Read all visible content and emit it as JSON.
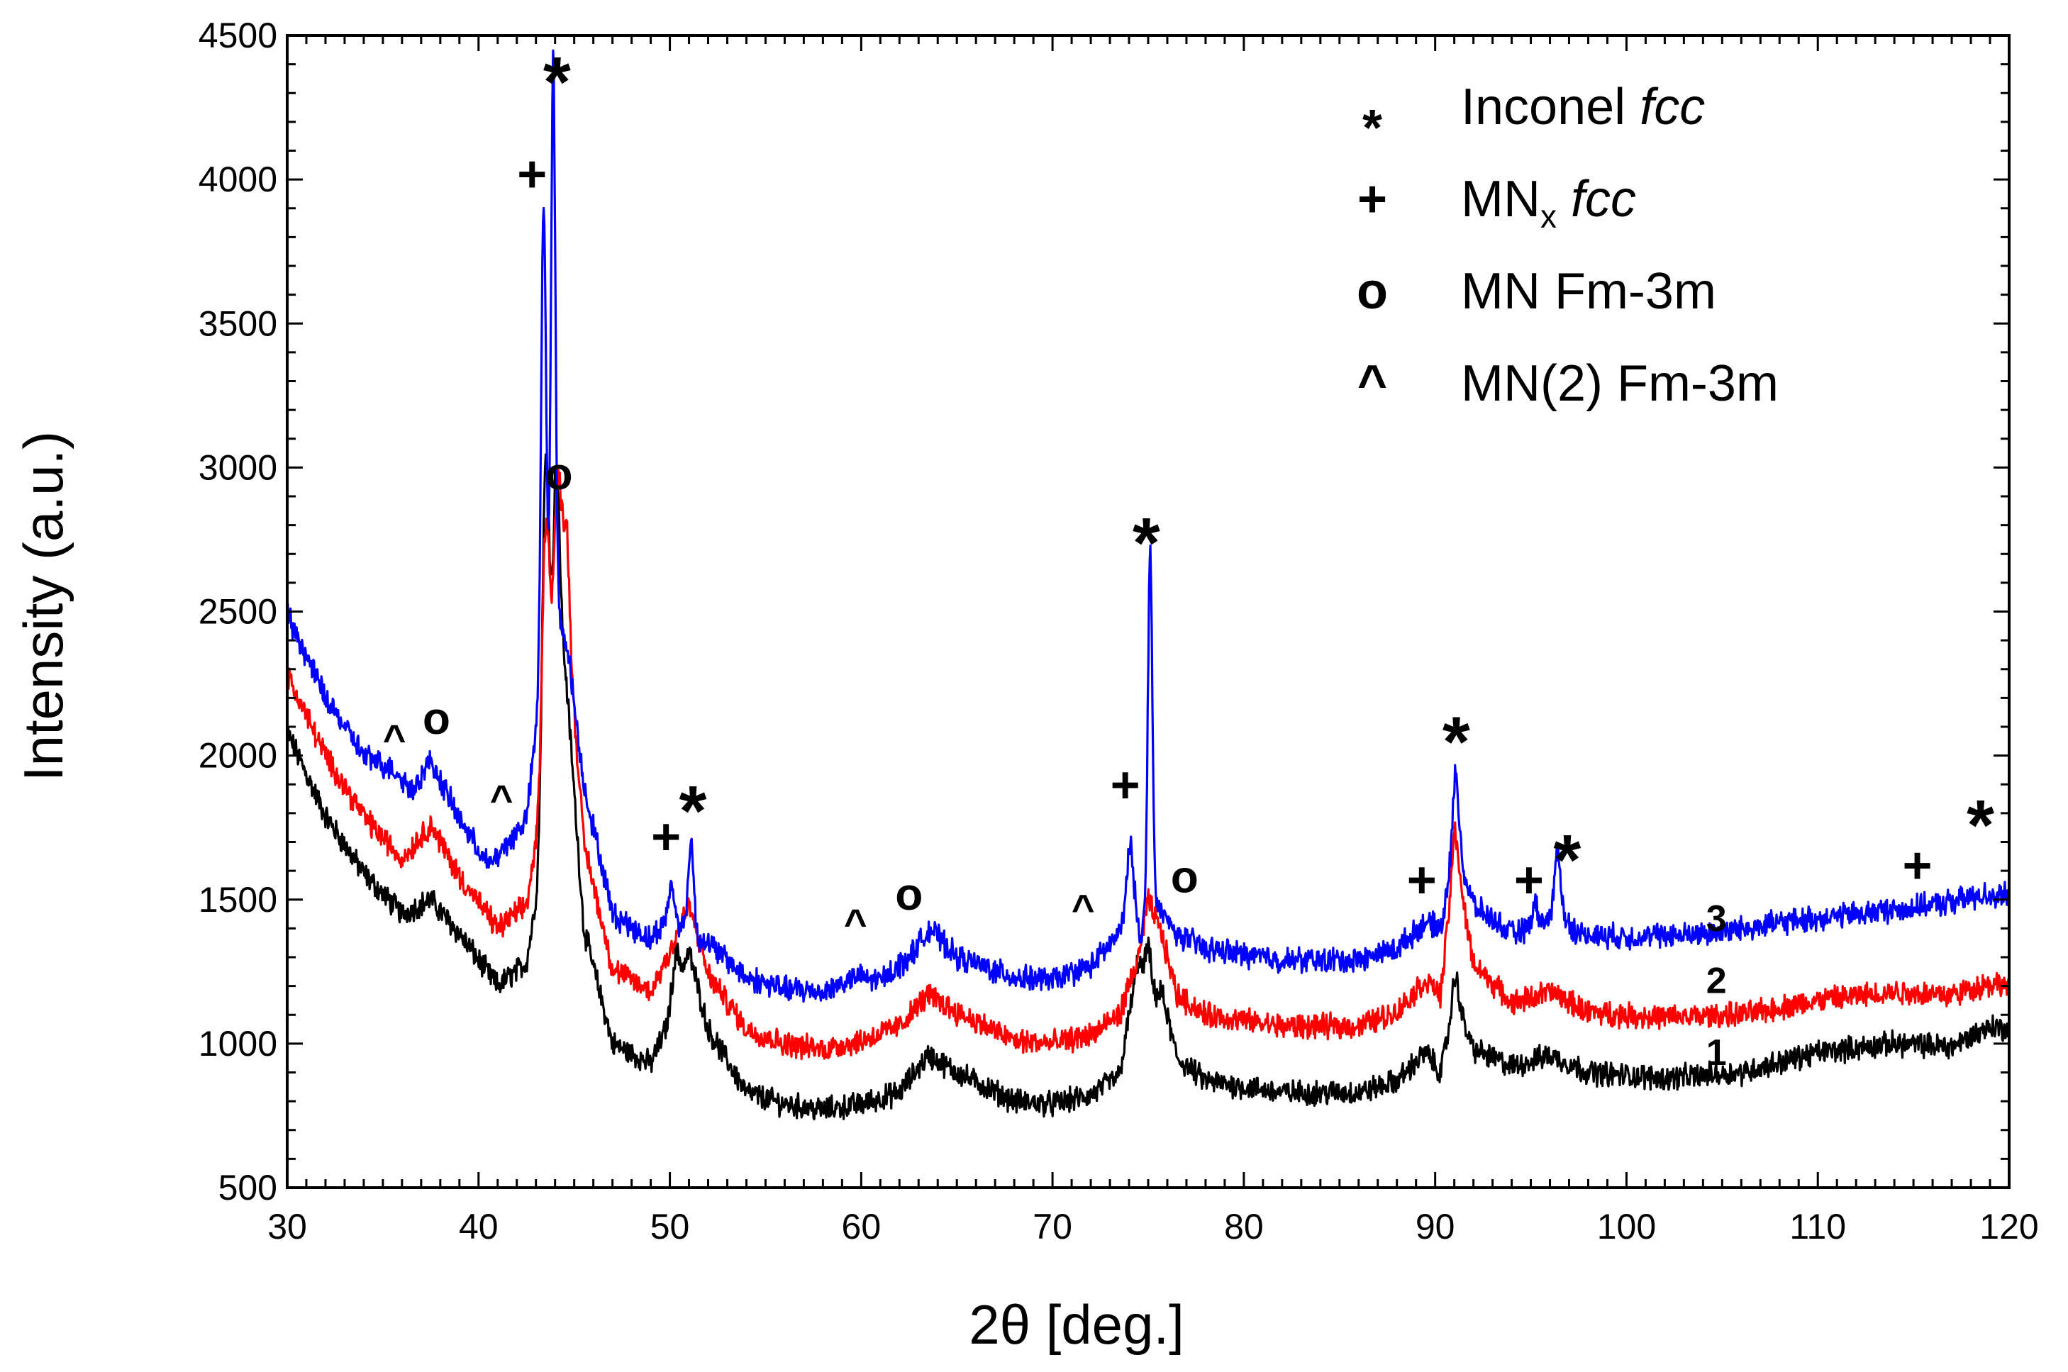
{
  "chart_data": {
    "type": "line",
    "title": "",
    "xlabel": "2θ [deg.]",
    "ylabel": "Intensity (a.u.)",
    "xlim": [
      30,
      120
    ],
    "ylim": [
      500,
      4500
    ],
    "xticks": [
      "30",
      "40",
      "50",
      "60",
      "70",
      "80",
      "90",
      "100",
      "110",
      "120"
    ],
    "yticks": [
      "500",
      "1000",
      "1500",
      "2000",
      "2500",
      "3000",
      "3500",
      "4000",
      "4500"
    ],
    "series": [
      {
        "name": "1",
        "label": "1",
        "color": "#000000",
        "baseline": [
          [
            30,
            2080
          ],
          [
            32,
            1790
          ],
          [
            34,
            1590
          ],
          [
            36,
            1450
          ],
          [
            37.5,
            1500
          ],
          [
            39,
            1380
          ],
          [
            41,
            1200
          ],
          [
            42.5,
            1280
          ],
          [
            43.5,
            1700
          ],
          [
            44,
            2620
          ],
          [
            44.6,
            2250
          ],
          [
            45.5,
            1400
          ],
          [
            47,
            1000
          ],
          [
            49,
            930
          ],
          [
            50,
            1080
          ],
          [
            51,
            1320
          ],
          [
            52,
            1050
          ],
          [
            54,
            830
          ],
          [
            56,
            790
          ],
          [
            58,
            770
          ],
          [
            60,
            790
          ],
          [
            62,
            830
          ],
          [
            63.5,
            960
          ],
          [
            65,
            900
          ],
          [
            68,
            800
          ],
          [
            70,
            790
          ],
          [
            72,
            820
          ],
          [
            73.5,
            890
          ],
          [
            74.5,
            1300
          ],
          [
            75,
            1150
          ],
          [
            75.7,
            1180
          ],
          [
            76.5,
            950
          ],
          [
            78,
            870
          ],
          [
            82,
            830
          ],
          [
            86,
            830
          ],
          [
            88,
            870
          ],
          [
            89.5,
            970
          ],
          [
            90.3,
            900
          ],
          [
            91,
            1150
          ],
          [
            92,
            980
          ],
          [
            94,
            920
          ],
          [
            96,
            960
          ],
          [
            98,
            900
          ],
          [
            102,
            880
          ],
          [
            106,
            900
          ],
          [
            110,
            970
          ],
          [
            114,
            1000
          ],
          [
            117,
            990
          ],
          [
            119,
            1060
          ],
          [
            120,
            1050
          ]
        ],
        "peaks": [
          [
            43.5,
            1300,
            0.25
          ],
          [
            44.1,
            400,
            0.22
          ],
          [
            50.3,
            150,
            0.3
          ],
          [
            75,
            180,
            0.2
          ],
          [
            91.1,
            90,
            0.25
          ]
        ]
      },
      {
        "name": "2",
        "label": "2",
        "color": "#ff0000",
        "baseline": [
          [
            30,
            2280
          ],
          [
            32,
            2000
          ],
          [
            34,
            1790
          ],
          [
            36,
            1640
          ],
          [
            37.5,
            1760
          ],
          [
            39,
            1580
          ],
          [
            41,
            1400
          ],
          [
            42.5,
            1480
          ],
          [
            43.5,
            1900
          ],
          [
            44,
            2650
          ],
          [
            44.6,
            2500
          ],
          [
            45.5,
            1700
          ],
          [
            47,
            1260
          ],
          [
            49,
            1180
          ],
          [
            50,
            1320
          ],
          [
            51,
            1480
          ],
          [
            52,
            1240
          ],
          [
            54,
            1050
          ],
          [
            56,
            1000
          ],
          [
            58,
            980
          ],
          [
            60,
            1010
          ],
          [
            62,
            1060
          ],
          [
            63.5,
            1170
          ],
          [
            65,
            1110
          ],
          [
            68,
            1010
          ],
          [
            70,
            1000
          ],
          [
            72,
            1030
          ],
          [
            73.5,
            1100
          ],
          [
            74.5,
            1300
          ],
          [
            75,
            1500
          ],
          [
            75.7,
            1380
          ],
          [
            76.5,
            1170
          ],
          [
            78,
            1100
          ],
          [
            82,
            1060
          ],
          [
            86,
            1060
          ],
          [
            88,
            1110
          ],
          [
            89.5,
            1220
          ],
          [
            90.3,
            1170
          ],
          [
            91,
            1650
          ],
          [
            92,
            1280
          ],
          [
            94,
            1140
          ],
          [
            96,
            1180
          ],
          [
            98,
            1110
          ],
          [
            102,
            1090
          ],
          [
            106,
            1100
          ],
          [
            110,
            1150
          ],
          [
            114,
            1180
          ],
          [
            117,
            1170
          ],
          [
            119,
            1210
          ],
          [
            120,
            1200
          ]
        ],
        "peaks": [
          [
            43.5,
            900,
            0.25
          ],
          [
            44.2,
            350,
            0.22
          ],
          [
            44.6,
            300,
            0.22
          ],
          [
            91.1,
            100,
            0.25
          ]
        ]
      },
      {
        "name": "3",
        "label": "3",
        "color": "#0000ff",
        "baseline": [
          [
            30,
            2490
          ],
          [
            32,
            2200
          ],
          [
            34,
            2000
          ],
          [
            35.6,
            1950
          ],
          [
            36.5,
            1880
          ],
          [
            37.5,
            1980
          ],
          [
            39,
            1780
          ],
          [
            40.5,
            1620
          ],
          [
            41,
            1650
          ],
          [
            42.5,
            1780
          ],
          [
            43.2,
            2200
          ],
          [
            44,
            2500
          ],
          [
            44.6,
            2400
          ],
          [
            45.5,
            1900
          ],
          [
            47,
            1450
          ],
          [
            49,
            1360
          ],
          [
            50,
            1450
          ],
          [
            51,
            1380
          ],
          [
            52,
            1350
          ],
          [
            54,
            1230
          ],
          [
            56,
            1190
          ],
          [
            58,
            1180
          ],
          [
            59.7,
            1230
          ],
          [
            61,
            1220
          ],
          [
            62.5,
            1300
          ],
          [
            63.6,
            1400
          ],
          [
            65,
            1300
          ],
          [
            68,
            1230
          ],
          [
            70,
            1220
          ],
          [
            72,
            1270
          ],
          [
            73.5,
            1380
          ],
          [
            74,
            1560
          ],
          [
            74.6,
            1380
          ],
          [
            75.2,
            1500
          ],
          [
            76.5,
            1380
          ],
          [
            78,
            1330
          ],
          [
            82,
            1290
          ],
          [
            86,
            1290
          ],
          [
            88,
            1330
          ],
          [
            89.5,
            1420
          ],
          [
            90.3,
            1400
          ],
          [
            91,
            1700
          ],
          [
            92,
            1480
          ],
          [
            94,
            1380
          ],
          [
            95,
            1400
          ],
          [
            96.5,
            1450
          ],
          [
            97.5,
            1380
          ],
          [
            100,
            1370
          ],
          [
            104,
            1380
          ],
          [
            108,
            1420
          ],
          [
            112,
            1450
          ],
          [
            116,
            1480
          ],
          [
            119,
            1520
          ],
          [
            120,
            1510
          ]
        ],
        "peaks": [
          [
            43.4,
            1650,
            0.18
          ],
          [
            43.9,
            1950,
            0.16
          ],
          [
            51.1,
            330,
            0.2
          ],
          [
            75.1,
            1250,
            0.16
          ],
          [
            91.1,
            250,
            0.22
          ],
          [
            96.4,
            220,
            0.22
          ],
          [
            95.2,
            80,
            0.2
          ],
          [
            74.1,
            150,
            0.2
          ],
          [
            50.1,
            100,
            0.2
          ]
        ]
      }
    ],
    "markers": [
      {
        "sym": "*",
        "x": 44.1,
        "y": 4340,
        "size": 100
      },
      {
        "sym": "+",
        "x": 42.8,
        "y": 4020,
        "size": 72
      },
      {
        "sym": "o",
        "x": 44.2,
        "y": 2980,
        "size": 64
      },
      {
        "sym": "^",
        "x": 35.6,
        "y": 2060,
        "size": 56
      },
      {
        "sym": "o",
        "x": 37.8,
        "y": 2130,
        "size": 64
      },
      {
        "sym": "^",
        "x": 41.2,
        "y": 1850,
        "size": 56
      },
      {
        "sym": "+",
        "x": 49.8,
        "y": 1720,
        "size": 72
      },
      {
        "sym": "*",
        "x": 51.2,
        "y": 1810,
        "size": 100
      },
      {
        "sym": "^",
        "x": 59.7,
        "y": 1420,
        "size": 56
      },
      {
        "sym": "o",
        "x": 62.5,
        "y": 1520,
        "size": 64
      },
      {
        "sym": "^",
        "x": 71.6,
        "y": 1470,
        "size": 56
      },
      {
        "sym": "+",
        "x": 73.8,
        "y": 1900,
        "size": 72
      },
      {
        "sym": "*",
        "x": 74.9,
        "y": 2740,
        "size": 100
      },
      {
        "sym": "o",
        "x": 76.9,
        "y": 1580,
        "size": 64
      },
      {
        "sym": "+",
        "x": 89.3,
        "y": 1570,
        "size": 72
      },
      {
        "sym": "*",
        "x": 91.1,
        "y": 2050,
        "size": 100
      },
      {
        "sym": "+",
        "x": 94.9,
        "y": 1570,
        "size": 72
      },
      {
        "sym": "*",
        "x": 96.9,
        "y": 1640,
        "size": 100
      },
      {
        "sym": "+",
        "x": 115.2,
        "y": 1620,
        "size": 72
      },
      {
        "sym": "*",
        "x": 118.5,
        "y": 1760,
        "size": 100
      }
    ],
    "curve_labels": [
      {
        "text": "3",
        "x": 104.7,
        "y": 1435
      },
      {
        "text": "2",
        "x": 104.7,
        "y": 1220
      },
      {
        "text": "1",
        "x": 104.7,
        "y": 970
      }
    ],
    "legend": {
      "position": "top-right",
      "entries": [
        {
          "symbol": "*",
          "text": "Inconel ",
          "italic": "fcc"
        },
        {
          "symbol": "+",
          "text": "MN",
          "sub": "x",
          "italic": "fcc"
        },
        {
          "symbol": "o",
          "text": "MN Fm-3m"
        },
        {
          "symbol": "^",
          "text": "MN(2) Fm-3m"
        }
      ]
    }
  }
}
